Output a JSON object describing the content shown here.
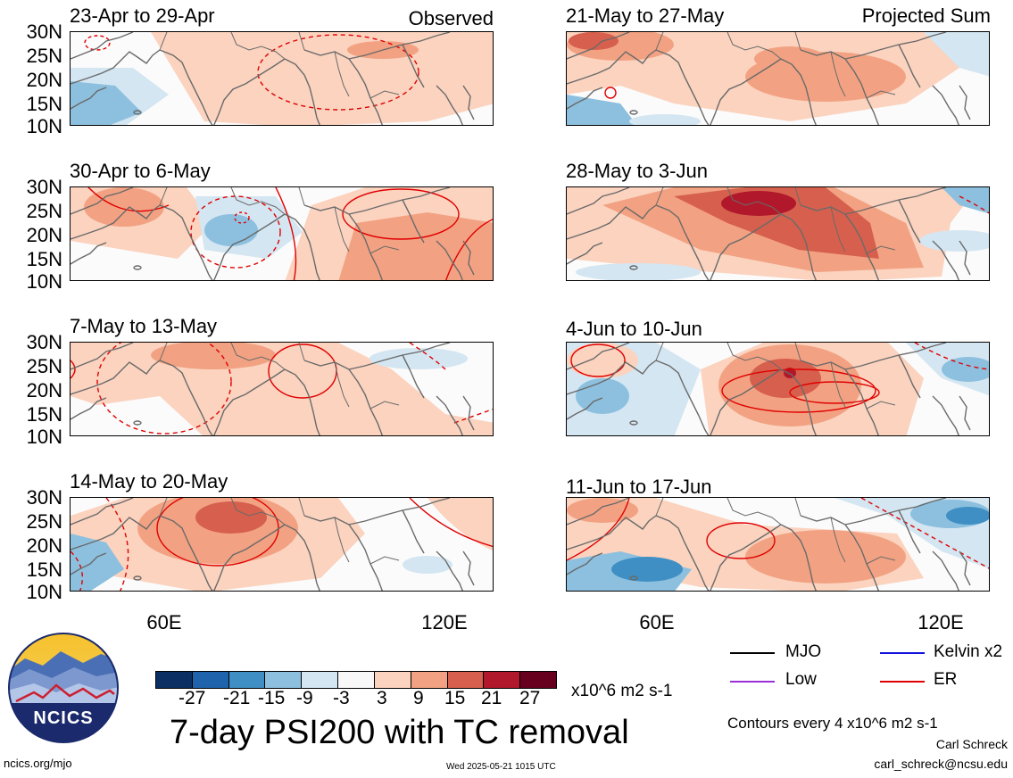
{
  "panels": {
    "left": [
      {
        "title": "23-Apr to 29-Apr",
        "label": "Observed"
      },
      {
        "title": "30-Apr to 6-May",
        "label": ""
      },
      {
        "title": "7-May to 13-May",
        "label": ""
      },
      {
        "title": "14-May to 20-May",
        "label": ""
      }
    ],
    "right": [
      {
        "title": "21-May to 27-May",
        "label": "Projected Sum"
      },
      {
        "title": "28-May to 3-Jun",
        "label": ""
      },
      {
        "title": "4-Jun to 10-Jun",
        "label": ""
      },
      {
        "title": "11-Jun to 17-Jun",
        "label": ""
      }
    ]
  },
  "axes": {
    "lat_labels": [
      "30N",
      "25N",
      "20N",
      "15N",
      "10N"
    ],
    "lon_labels": [
      "60E",
      "120E"
    ]
  },
  "colorbar": {
    "ticks": [
      "-27",
      "-21",
      "-15",
      "-9",
      "-3",
      "3",
      "9",
      "15",
      "21",
      "27"
    ],
    "colors": [
      "#0b2f63",
      "#1f63ad",
      "#3f8fc4",
      "#8dc0df",
      "#d4e6f2",
      "#f8f8f8",
      "#fbd3bf",
      "#f2a282",
      "#d6604d",
      "#b2182b",
      "#67001f"
    ],
    "units": "x10^6 m2 s-1"
  },
  "legend": {
    "mjo": "MJO",
    "kelvin": "Kelvin x2",
    "low": "Low",
    "er": "ER",
    "mjo_color": "#000000",
    "kelvin_color": "#1010dd",
    "low_color": "#9b30d8",
    "er_color": "#e00000"
  },
  "main_title": "7-day PSI200 with TC removal",
  "contour_note": "Contours every 4 x10^6 m2 s-1",
  "author": "Carl Schreck",
  "email": "carl_schreck@ncsu.edu",
  "url": "ncics.org/mjo",
  "timestamp": "Wed 2025-05-21 1015 UTC",
  "logo_text": "NCICS"
}
